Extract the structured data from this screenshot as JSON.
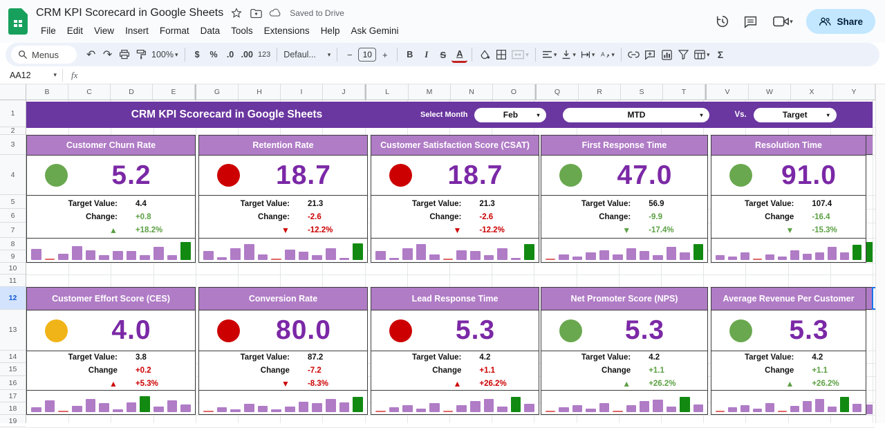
{
  "titlebar": {
    "doc_title": "CRM KPI Scorecard in Google Sheets",
    "saved_status": "Saved to Drive",
    "menus": [
      "File",
      "Edit",
      "View",
      "Insert",
      "Format",
      "Data",
      "Tools",
      "Extensions",
      "Help",
      "Ask Gemini"
    ],
    "share_label": "Share"
  },
  "toolbar": {
    "menus_label": "Menus",
    "zoom": "100%",
    "currency": "$",
    "percent": "%",
    "decimal_decrease": ".0",
    "decimal_increase": ".00",
    "more_formats": "123",
    "font_name": "Defaul...",
    "font_size": "10",
    "minus": "−",
    "plus": "+",
    "bold": "B",
    "italic": "I",
    "strikethrough": "S",
    "text_color": "A",
    "functions": "Σ"
  },
  "formula_bar": {
    "name_box": "AA12",
    "fx_label": "fx"
  },
  "grid": {
    "columns": [
      "B",
      "C",
      "D",
      "E",
      "G",
      "H",
      "I",
      "J",
      "L",
      "M",
      "N",
      "O",
      "Q",
      "R",
      "S",
      "T",
      "V",
      "W",
      "X",
      "Y"
    ],
    "rows": [
      "1",
      "2",
      "3",
      "4",
      "5",
      "6",
      "7",
      "8",
      "9",
      "10",
      "11",
      "12",
      "13",
      "14",
      "15",
      "16",
      "17",
      "18",
      "19"
    ],
    "selected_row": "12",
    "selected_cell": "AA12"
  },
  "banner": {
    "title": "CRM KPI Scorecard in Google Sheets",
    "select_month_label": "Select Month",
    "month": "Feb",
    "period": "MTD",
    "vs_label": "Vs.",
    "compare": "Target"
  },
  "colors": {
    "banner": "#6a369f",
    "card_header": "#b07cc6",
    "value_text": "#7b28a6",
    "green": "#6aa84f",
    "red": "#cc0000",
    "amber": "#f1b418",
    "bar_purple": "#b07cc6",
    "bar_green": "#128a12",
    "bar_red": "#e06666",
    "share_pill": "#c2e7ff",
    "selected_row_bg": "#d3e3fd"
  },
  "cards": [
    {
      "title": "Customer Churn Rate",
      "status": "green",
      "value": "5.2",
      "target_label": "Target Value:",
      "target": "4.4",
      "change_label": "Change:",
      "change": "+0.8",
      "change_color": "green",
      "arrow": "▲",
      "pct": "+18.2%",
      "pct_color": "green",
      "spark": {
        "values": [
          52,
          6,
          30,
          65,
          48,
          24,
          44,
          42,
          22,
          62,
          24,
          88
        ],
        "colors": [
          "p",
          "r",
          "p",
          "p",
          "p",
          "p",
          "p",
          "p",
          "p",
          "p",
          "p",
          "g"
        ]
      }
    },
    {
      "title": "Retention Rate",
      "status": "red",
      "value": "18.7",
      "target_label": "Target Value:",
      "target": "21.3",
      "change_label": "Change:",
      "change": "-2.6",
      "change_color": "red",
      "arrow": "▼",
      "pct": "-12.2%",
      "pct_color": "red",
      "spark": {
        "values": [
          42,
          12,
          58,
          78,
          28,
          5,
          50,
          40,
          24,
          58,
          10,
          80
        ],
        "colors": [
          "p",
          "p",
          "p",
          "p",
          "p",
          "r",
          "p",
          "p",
          "p",
          "p",
          "p",
          "g"
        ]
      }
    },
    {
      "title": "Customer Satisfaction Score (CSAT)",
      "status": "red",
      "value": "18.7",
      "target_label": "Target Value:",
      "target": "21.3",
      "change_label": "Change:",
      "change": "-2.6",
      "change_color": "red",
      "arrow": "▼",
      "pct": "-12.2%",
      "pct_color": "red",
      "spark": {
        "values": [
          42,
          10,
          55,
          75,
          26,
          5,
          48,
          44,
          24,
          58,
          10,
          78
        ],
        "colors": [
          "p",
          "p",
          "p",
          "p",
          "p",
          "r",
          "p",
          "p",
          "p",
          "p",
          "p",
          "g"
        ]
      }
    },
    {
      "title": "First Response Time",
      "status": "green",
      "value": "47.0",
      "target_label": "Target Value:",
      "target": "56.9",
      "change_label": "Change:",
      "change": "-9.9",
      "change_color": "green",
      "arrow": "▼",
      "pct": "-17.4%",
      "pct_color": "green",
      "spark": {
        "values": [
          5,
          26,
          18,
          36,
          46,
          28,
          56,
          44,
          24,
          64,
          38,
          78
        ],
        "colors": [
          "r",
          "p",
          "p",
          "p",
          "p",
          "p",
          "p",
          "p",
          "p",
          "p",
          "p",
          "g"
        ]
      }
    },
    {
      "title": "Resolution Time",
      "status": "green",
      "value": "91.0",
      "target_label": "Target Value:",
      "target": "107.4",
      "change_label": "Change",
      "change": "-16.4",
      "change_color": "green",
      "arrow": "▼",
      "pct": "-15.3%",
      "pct_color": "green",
      "spark": {
        "values": [
          22,
          18,
          36,
          5,
          26,
          16,
          46,
          30,
          38,
          62,
          36,
          74
        ],
        "colors": [
          "p",
          "p",
          "p",
          "r",
          "p",
          "p",
          "p",
          "p",
          "p",
          "p",
          "p",
          "g"
        ]
      }
    },
    {
      "title": "Customer Effort Score (CES)",
      "status": "amber",
      "value": "4.0",
      "target_label": "Target Value:",
      "target": "3.8",
      "change_label": "Change",
      "change": "+0.2",
      "change_color": "red",
      "arrow": "▲",
      "pct": "+5.3%",
      "pct_color": "red",
      "spark": {
        "values": [
          24,
          56,
          5,
          30,
          64,
          44,
          12,
          48,
          78,
          26,
          58,
          38
        ],
        "colors": [
          "p",
          "p",
          "r",
          "p",
          "p",
          "p",
          "p",
          "p",
          "g",
          "p",
          "p",
          "p"
        ]
      }
    },
    {
      "title": "Conversion Rate",
      "status": "red",
      "value": "80.0",
      "target_label": "Target Value:",
      "target": "87.2",
      "change_label": "Change",
      "change": "-7.2",
      "change_color": "red",
      "arrow": "▼",
      "pct": "-8.3%",
      "pct_color": "red",
      "spark": {
        "values": [
          5,
          24,
          14,
          40,
          30,
          12,
          26,
          50,
          42,
          62,
          46,
          72
        ],
        "colors": [
          "r",
          "p",
          "p",
          "p",
          "p",
          "p",
          "p",
          "p",
          "p",
          "p",
          "p",
          "g"
        ]
      }
    },
    {
      "title": "Lead Response Time",
      "status": "red",
      "value": "5.3",
      "target_label": "Target Value:",
      "target": "4.2",
      "change_label": "Change",
      "change": "+1.1",
      "change_color": "red",
      "arrow": "▲",
      "pct": "+26.2%",
      "pct_color": "red",
      "spark": {
        "values": [
          5,
          24,
          34,
          16,
          44,
          5,
          34,
          54,
          62,
          26,
          74,
          40
        ],
        "colors": [
          "r",
          "p",
          "p",
          "p",
          "p",
          "r",
          "p",
          "p",
          "p",
          "p",
          "g",
          "p"
        ]
      }
    },
    {
      "title": "Net Promoter Score (NPS)",
      "status": "green",
      "value": "5.3",
      "target_label": "Target Value:",
      "target": "4.2",
      "change_label": "Change",
      "change": "+1.1",
      "change_color": "green",
      "arrow": "▲",
      "pct": "+26.2%",
      "pct_color": "green",
      "spark": {
        "values": [
          5,
          22,
          32,
          15,
          42,
          5,
          34,
          52,
          60,
          25,
          74,
          38
        ],
        "colors": [
          "r",
          "p",
          "p",
          "p",
          "p",
          "r",
          "p",
          "p",
          "p",
          "p",
          "g",
          "p"
        ]
      }
    },
    {
      "title": "Average Revenue Per Customer",
      "status": "green",
      "value": "5.3",
      "target_label": "Target Value:",
      "target": "4.2",
      "change_label": "Change",
      "change": "+1.1",
      "change_color": "green",
      "arrow": "▲",
      "pct": "+26.2%",
      "pct_color": "green",
      "spark": {
        "values": [
          5,
          22,
          32,
          15,
          42,
          5,
          30,
          52,
          62,
          28,
          74,
          40
        ],
        "colors": [
          "r",
          "p",
          "p",
          "p",
          "p",
          "r",
          "p",
          "p",
          "p",
          "p",
          "g",
          "p"
        ]
      }
    }
  ],
  "icons": {
    "sheets-logo": "green sheet glyph",
    "star-icon": "☆",
    "move-folder-icon": "folder+arrow",
    "cloud-saved-icon": "cloud",
    "history-icon": "clock-arrow",
    "comment-icon": "speech",
    "video-call-icon": "camera",
    "share-people-icon": "people",
    "search-icon": "magnifier",
    "undo-icon": "↶",
    "redo-icon": "↷",
    "dropdown-caret": "▾",
    "up-arrow": "▲",
    "down-arrow": "▼"
  }
}
